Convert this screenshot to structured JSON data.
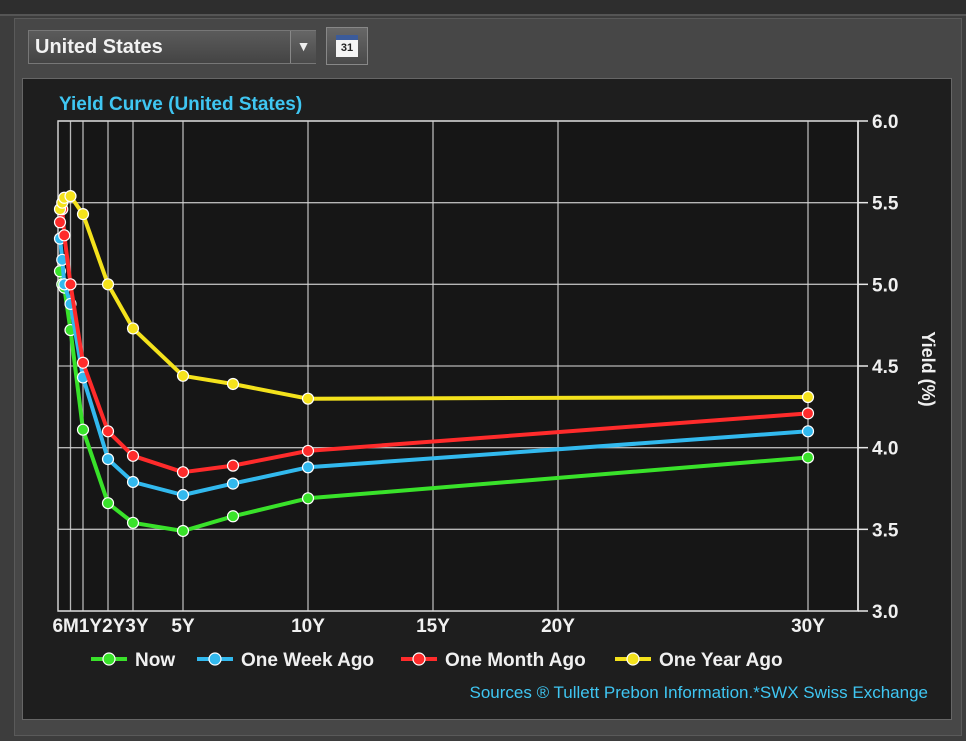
{
  "header": {
    "country_select_value": "United States",
    "dropdown_arrow": "▼",
    "calendar_label": "31"
  },
  "chart_data": {
    "type": "line",
    "title": "Yield Curve (United States)",
    "ylabel": "Yield (%)",
    "xlabel": "",
    "ylim": [
      3.0,
      6.0
    ],
    "xlim_years": [
      0,
      32
    ],
    "y_ticks": [
      "3.0",
      "3.5",
      "4.0",
      "4.5",
      "5.0",
      "5.5",
      "6.0"
    ],
    "y_tick_values": [
      3.0,
      3.5,
      4.0,
      4.5,
      5.0,
      5.5,
      6.0
    ],
    "x_ticks": [
      {
        "label": "6M",
        "value": 0.5
      },
      {
        "label": "1Y",
        "value": 1
      },
      {
        "label": "2Y",
        "value": 2
      },
      {
        "label": "3Y",
        "value": 3
      },
      {
        "label": "5Y",
        "value": 5
      },
      {
        "label": "10Y",
        "value": 10
      },
      {
        "label": "15Y",
        "value": 15
      },
      {
        "label": "20Y",
        "value": 20
      },
      {
        "label": "30Y",
        "value": 30
      }
    ],
    "x_tick_label_text": [
      "6M1Y2Y3Y",
      "5Y",
      "10Y",
      "15Y",
      "20Y",
      "30Y"
    ],
    "grid": true,
    "legend_position": "bottom",
    "series": [
      {
        "name": "Now",
        "color": "#39e22a",
        "x": [
          0.08,
          0.17,
          0.25,
          0.5,
          1,
          2,
          3,
          5,
          7,
          10,
          30
        ],
        "y": [
          5.08,
          5.0,
          4.98,
          4.72,
          4.11,
          3.66,
          3.54,
          3.49,
          3.58,
          3.69,
          3.94
        ]
      },
      {
        "name": "One Week Ago",
        "color": "#32b9ee",
        "x": [
          0.08,
          0.17,
          0.25,
          0.5,
          1,
          2,
          3,
          5,
          7,
          10,
          30
        ],
        "y": [
          5.28,
          5.15,
          5.0,
          4.88,
          4.43,
          3.93,
          3.79,
          3.71,
          3.78,
          3.88,
          4.1
        ]
      },
      {
        "name": "One Month Ago",
        "color": "#ff2b2b",
        "x": [
          0.08,
          0.17,
          0.25,
          0.5,
          1,
          2,
          3,
          5,
          7,
          10,
          30
        ],
        "y": [
          5.38,
          5.46,
          5.3,
          5.0,
          4.52,
          4.1,
          3.95,
          3.85,
          3.89,
          3.98,
          4.21
        ]
      },
      {
        "name": "One Year Ago",
        "color": "#f4e21c",
        "x": [
          0.08,
          0.17,
          0.25,
          0.5,
          1,
          2,
          3,
          5,
          7,
          10,
          30
        ],
        "y": [
          5.46,
          5.5,
          5.53,
          5.54,
          5.43,
          5.0,
          4.73,
          4.44,
          4.39,
          4.3,
          4.31
        ]
      }
    ],
    "source_text": "Sources ® Tullett Prebon Information.*SWX Swiss Exchange"
  }
}
